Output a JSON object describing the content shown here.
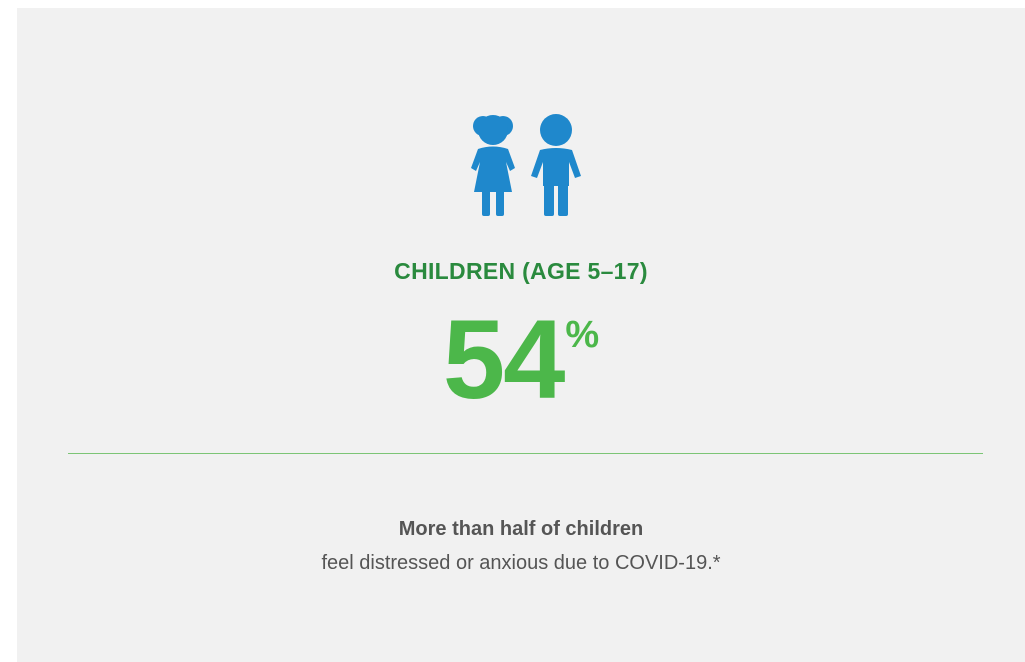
{
  "icon": {
    "name": "children-icon",
    "color": "#1f88cc"
  },
  "category_label": "CHILDREN (AGE 5–17)",
  "stat": {
    "value": "54",
    "unit": "%"
  },
  "description": {
    "headline": "More than half of children",
    "body": "feel distressed or anxious due to COVID-19.*"
  },
  "colors": {
    "background": "#f1f1f1",
    "label_green": "#2a8a3e",
    "stat_green": "#4cb74a",
    "divider_green": "#7cc576",
    "text_gray": "#555555"
  }
}
